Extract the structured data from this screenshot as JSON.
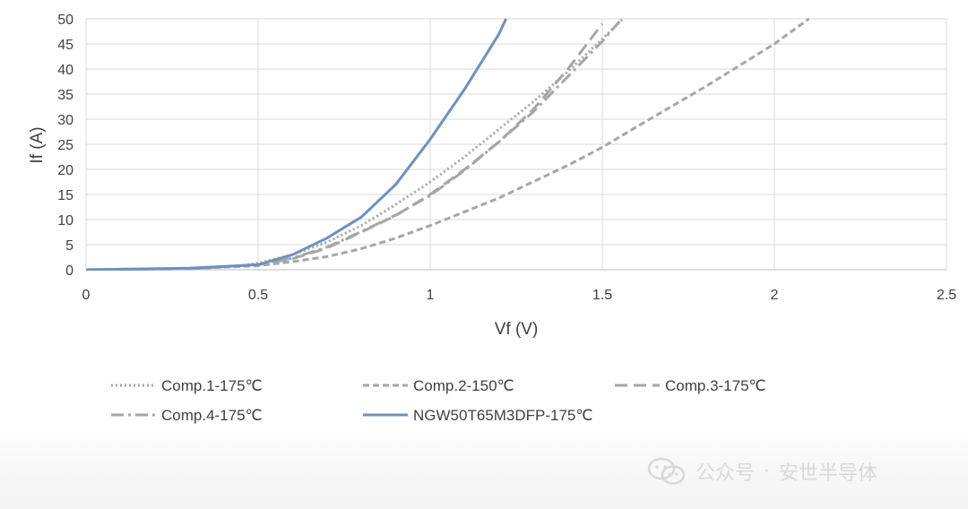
{
  "chart_data": {
    "type": "line",
    "xlabel": "Vf (V)",
    "ylabel": "If (A)",
    "xlim": [
      0,
      2.5
    ],
    "ylim": [
      0,
      50
    ],
    "xticks": [
      0,
      0.5,
      1,
      1.5,
      2,
      2.5
    ],
    "xtick_labels": [
      "0",
      "0.5",
      "1",
      "1.5",
      "2",
      "2.5"
    ],
    "yticks": [
      0,
      5,
      10,
      15,
      20,
      25,
      30,
      35,
      40,
      45,
      50
    ],
    "ytick_labels": [
      "0",
      "5",
      "10",
      "15",
      "20",
      "25",
      "30",
      "35",
      "40",
      "45",
      "50"
    ],
    "grid": true,
    "legend_position": "bottom",
    "series": [
      {
        "name": "Comp.1-175℃",
        "color": "#a6a6a6",
        "style": "dotted",
        "x": [
          0,
          0.3,
          0.45,
          0.5,
          0.6,
          0.7,
          0.8,
          0.9,
          1.0,
          1.1,
          1.2,
          1.3,
          1.4,
          1.5,
          1.56
        ],
        "y": [
          0,
          0.3,
          0.8,
          1.3,
          3.0,
          5.5,
          8.8,
          13.0,
          17.5,
          22.5,
          28.0,
          33.5,
          39.5,
          46.0,
          50.0
        ]
      },
      {
        "name": "Comp.2-150℃",
        "color": "#a6a6a6",
        "style": "dashed",
        "x": [
          0,
          0.3,
          0.5,
          0.6,
          0.7,
          0.8,
          0.9,
          1.0,
          1.2,
          1.4,
          1.5,
          1.6,
          1.8,
          2.0,
          2.1
        ],
        "y": [
          0,
          0.2,
          0.8,
          1.6,
          2.6,
          4.2,
          6.3,
          8.8,
          14.3,
          20.8,
          24.4,
          28.5,
          36.5,
          45.0,
          50.0
        ]
      },
      {
        "name": "Comp.3-175℃",
        "color": "#a6a6a6",
        "style": "long-dash",
        "x": [
          0,
          0.3,
          0.5,
          0.6,
          0.7,
          0.8,
          0.9,
          1.0,
          1.1,
          1.2,
          1.3,
          1.4,
          1.5
        ],
        "y": [
          0,
          0.2,
          1.0,
          2.2,
          4.3,
          7.5,
          10.8,
          15.0,
          20.0,
          25.5,
          32.0,
          40.0,
          49.0
        ]
      },
      {
        "name": "Comp.4-175℃",
        "color": "#a6a6a6",
        "style": "dash-dot",
        "x": [
          0,
          0.3,
          0.5,
          0.6,
          0.7,
          0.8,
          0.9,
          1.0,
          1.1,
          1.2,
          1.3,
          1.4,
          1.5,
          1.55
        ],
        "y": [
          0,
          0.2,
          1.0,
          2.3,
          4.5,
          7.6,
          10.9,
          14.8,
          19.8,
          25.5,
          31.5,
          38.5,
          45.5,
          49.5
        ]
      },
      {
        "name": "NGW50T65M3DFP-175℃",
        "color": "#6f8fc4",
        "style": "solid",
        "x": [
          0,
          0.3,
          0.5,
          0.6,
          0.7,
          0.8,
          0.9,
          1.0,
          1.1,
          1.2,
          1.22
        ],
        "y": [
          0,
          0.3,
          1.0,
          3.0,
          6.3,
          10.5,
          17.0,
          26.0,
          36.0,
          47.0,
          50.0
        ]
      }
    ]
  },
  "watermark": {
    "account_label": "公众号",
    "separator": "·",
    "name": "安世半导体"
  }
}
